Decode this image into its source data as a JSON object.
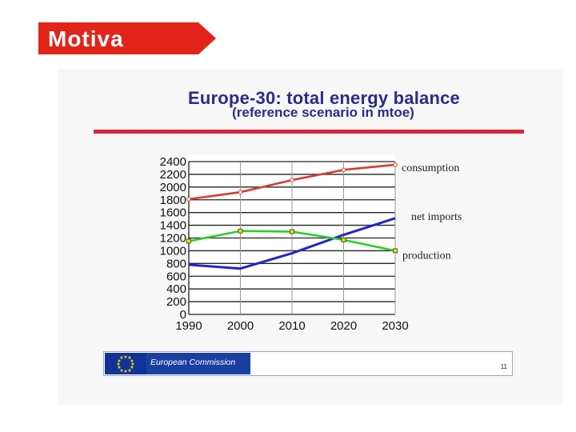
{
  "logo": {
    "text": "Motiva",
    "color": "#e2231a"
  },
  "footer": {
    "organization": "European Commission",
    "page": "11"
  },
  "colors": {
    "title": "#2a2c8a",
    "rule": "#d8263e"
  },
  "chart_data": {
    "type": "line",
    "title": "Europe-30:  total energy balance",
    "subtitle": "(reference scenario in mtoe)",
    "x": [
      "1990",
      "2000",
      "2010",
      "2020",
      "2030"
    ],
    "ylim": [
      0,
      2400
    ],
    "yticks": [
      "0",
      "200",
      "400",
      "600",
      "800",
      "1000",
      "1200",
      "1400",
      "1600",
      "1800",
      "2000",
      "2200",
      "2400"
    ],
    "grid": true,
    "series": [
      {
        "name": "consumption",
        "color": "#d83a32",
        "marker": "circle",
        "values": [
          1810,
          1920,
          2110,
          2270,
          2350
        ]
      },
      {
        "name": "net imports",
        "color": "#1f26c8",
        "marker": "none",
        "values": [
          780,
          720,
          960,
          1250,
          1510
        ]
      },
      {
        "name": "production",
        "color": "#27d027",
        "marker": "square",
        "values": [
          1150,
          1310,
          1300,
          1170,
          1000
        ]
      }
    ]
  }
}
